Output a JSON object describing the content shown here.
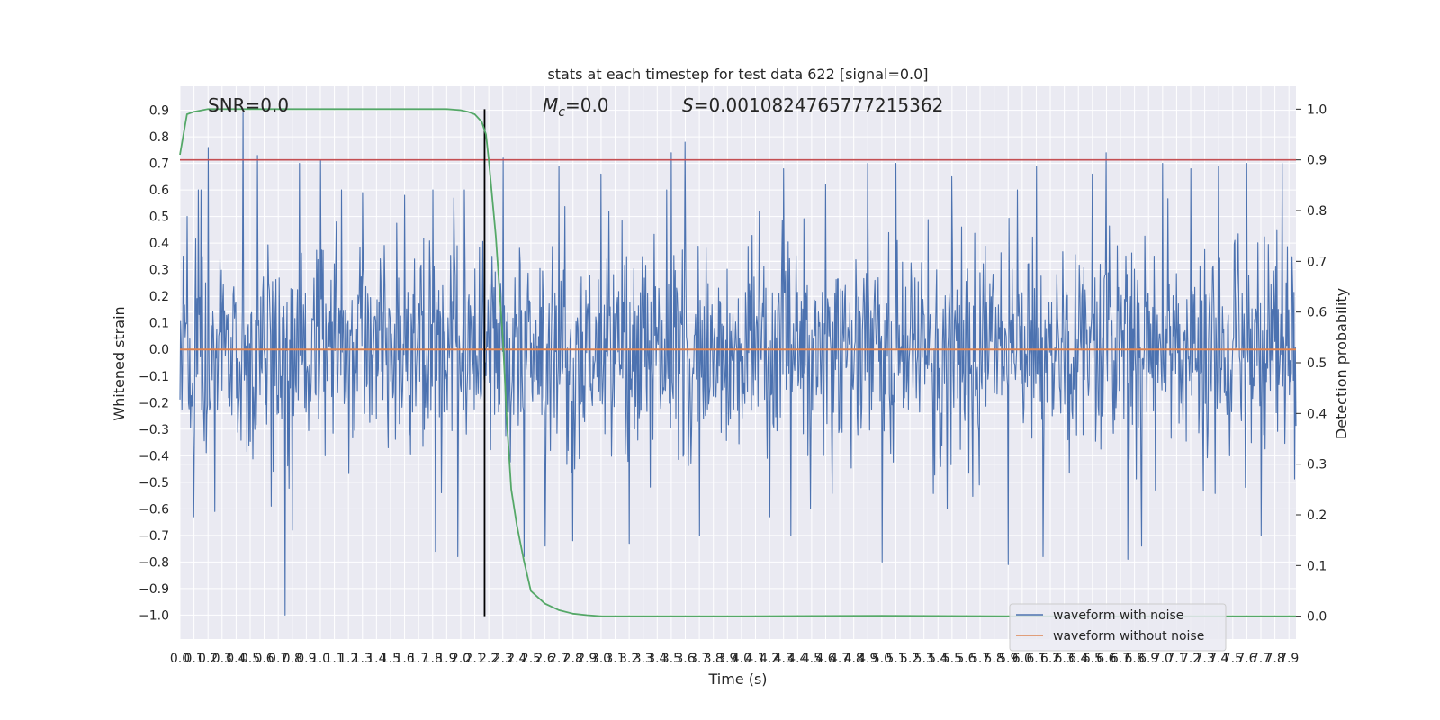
{
  "chart_data": {
    "type": "line",
    "title": "stats at each timestep for test data 622 [signal=0.0]",
    "xlabel": "Time (s)",
    "ylabel": "Whitened strain",
    "y2label": "Detection probability",
    "xlim": [
      0.0,
      7.95
    ],
    "ylim": [
      -1.09,
      0.99
    ],
    "y2lim": [
      -0.045,
      1.045
    ],
    "x_ticks": [
      "0.0",
      "0.1",
      "0.2",
      "0.3",
      "0.4",
      "0.5",
      "0.6",
      "0.7",
      "0.8",
      "0.9",
      "1.0",
      "1.1",
      "1.2",
      "1.3",
      "1.4",
      "1.5",
      "1.6",
      "1.7",
      "1.8",
      "1.9",
      "2.0",
      "2.1",
      "2.2",
      "2.3",
      "2.4",
      "2.5",
      "2.6",
      "2.7",
      "2.8",
      "2.9",
      "3.0",
      "3.1",
      "3.2",
      "3.3",
      "3.4",
      "3.5",
      "3.6",
      "3.7",
      "3.8",
      "3.9",
      "4.0",
      "4.1",
      "4.2",
      "4.3",
      "4.4",
      "4.5",
      "4.6",
      "4.7",
      "4.8",
      "4.9",
      "5.0",
      "5.1",
      "5.2",
      "5.3",
      "5.4",
      "5.5",
      "5.6",
      "5.7",
      "5.8",
      "5.9",
      "6.0",
      "6.1",
      "6.2",
      "6.3",
      "6.4",
      "6.5",
      "6.6",
      "6.7",
      "6.8",
      "6.9",
      "7.0",
      "7.1",
      "7.2",
      "7.3",
      "7.4",
      "7.5",
      "7.6",
      "7.7",
      "7.8",
      "7.9"
    ],
    "y_ticks": [
      "0.9",
      "0.8",
      "0.7",
      "0.6",
      "0.5",
      "0.4",
      "0.3",
      "0.2",
      "0.1",
      "0.0",
      "-0.1",
      "-0.2",
      "-0.3",
      "-0.4",
      "-0.5",
      "-0.6",
      "-0.7",
      "-0.8",
      "-0.9",
      "-1.0"
    ],
    "y2_ticks": [
      "1.0",
      "0.9",
      "0.8",
      "0.7",
      "0.6",
      "0.5",
      "0.4",
      "0.3",
      "0.2",
      "0.1",
      "0.0"
    ],
    "grid": true,
    "legend_position": "lower-right",
    "annotations": {
      "snr": "SNR=0.0",
      "mc_symbol": "M",
      "mc_subscript": "c",
      "mc_value": "=0.0",
      "s_symbol": "S",
      "s_value": "=0.0010824765777215362"
    },
    "threshold": {
      "value": 0.9,
      "axis": "right",
      "color": "#c44e52"
    },
    "marker_line": {
      "x": 2.17,
      "color": "#000000"
    },
    "series": [
      {
        "name": "waveform with noise",
        "color": "#4c72b0",
        "axis": "left",
        "envelope_peaks": [
          {
            "x": 0.05,
            "y": 0.5
          },
          {
            "x": 0.1,
            "y": -0.63
          },
          {
            "x": 0.15,
            "y": 0.6
          },
          {
            "x": 0.2,
            "y": 0.76
          },
          {
            "x": 0.25,
            "y": -0.61
          },
          {
            "x": 0.45,
            "y": 0.89
          },
          {
            "x": 0.55,
            "y": 0.73
          },
          {
            "x": 0.65,
            "y": -0.59
          },
          {
            "x": 0.75,
            "y": -1.0
          },
          {
            "x": 0.8,
            "y": -0.68
          },
          {
            "x": 0.85,
            "y": 0.7
          },
          {
            "x": 1.0,
            "y": 0.71
          },
          {
            "x": 1.15,
            "y": 0.6
          },
          {
            "x": 1.3,
            "y": 0.59
          },
          {
            "x": 1.6,
            "y": 0.58
          },
          {
            "x": 1.8,
            "y": 0.6
          },
          {
            "x": 1.82,
            "y": -0.76
          },
          {
            "x": 1.95,
            "y": 0.57
          },
          {
            "x": 1.98,
            "y": -0.78
          },
          {
            "x": 2.3,
            "y": 0.72
          },
          {
            "x": 2.45,
            "y": -0.78
          },
          {
            "x": 2.6,
            "y": -0.74
          },
          {
            "x": 2.7,
            "y": 0.69
          },
          {
            "x": 2.8,
            "y": -0.72
          },
          {
            "x": 3.0,
            "y": 0.66
          },
          {
            "x": 3.2,
            "y": -0.73
          },
          {
            "x": 3.5,
            "y": 0.74
          },
          {
            "x": 3.6,
            "y": 0.78
          },
          {
            "x": 3.7,
            "y": -0.7
          },
          {
            "x": 4.2,
            "y": -0.63
          },
          {
            "x": 4.3,
            "y": 0.68
          },
          {
            "x": 4.35,
            "y": -0.7
          },
          {
            "x": 4.6,
            "y": 0.62
          },
          {
            "x": 4.9,
            "y": 0.7
          },
          {
            "x": 5.0,
            "y": -0.8
          },
          {
            "x": 5.1,
            "y": 0.7
          },
          {
            "x": 5.5,
            "y": 0.65
          },
          {
            "x": 5.9,
            "y": -0.81
          },
          {
            "x": 6.1,
            "y": 0.69
          },
          {
            "x": 6.15,
            "y": -0.78
          },
          {
            "x": 6.5,
            "y": 0.66
          },
          {
            "x": 6.6,
            "y": 0.74
          },
          {
            "x": 6.75,
            "y": -0.79
          },
          {
            "x": 6.85,
            "y": -0.74
          },
          {
            "x": 7.0,
            "y": 0.7
          },
          {
            "x": 7.2,
            "y": 0.68
          },
          {
            "x": 7.4,
            "y": 0.69
          },
          {
            "x": 7.6,
            "y": 0.7
          },
          {
            "x": 7.7,
            "y": -0.7
          },
          {
            "x": 7.85,
            "y": 0.7
          }
        ]
      },
      {
        "name": "waveform without noise",
        "color": "#dd8452",
        "axis": "left",
        "x": [
          0.0,
          7.95
        ],
        "y": [
          0.0,
          0.0
        ]
      },
      {
        "name": "detection probability",
        "color": "#55a868",
        "axis": "right",
        "x": [
          0.0,
          0.05,
          0.1,
          0.2,
          0.5,
          1.0,
          1.5,
          1.9,
          2.0,
          2.05,
          2.1,
          2.15,
          2.18,
          2.2,
          2.25,
          2.3,
          2.33,
          2.36,
          2.4,
          2.45,
          2.5,
          2.6,
          2.7,
          2.8,
          2.9,
          3.0,
          4.0,
          5.0,
          6.0,
          7.0,
          7.95
        ],
        "y": [
          0.91,
          0.99,
          0.995,
          1.0,
          1.0,
          1.0,
          1.0,
          1.0,
          0.998,
          0.995,
          0.99,
          0.975,
          0.95,
          0.9,
          0.75,
          0.55,
          0.38,
          0.25,
          0.18,
          0.11,
          0.05,
          0.025,
          0.012,
          0.005,
          0.002,
          0.0,
          0.0,
          0.001,
          0.0,
          0.0,
          0.0
        ]
      }
    ]
  }
}
